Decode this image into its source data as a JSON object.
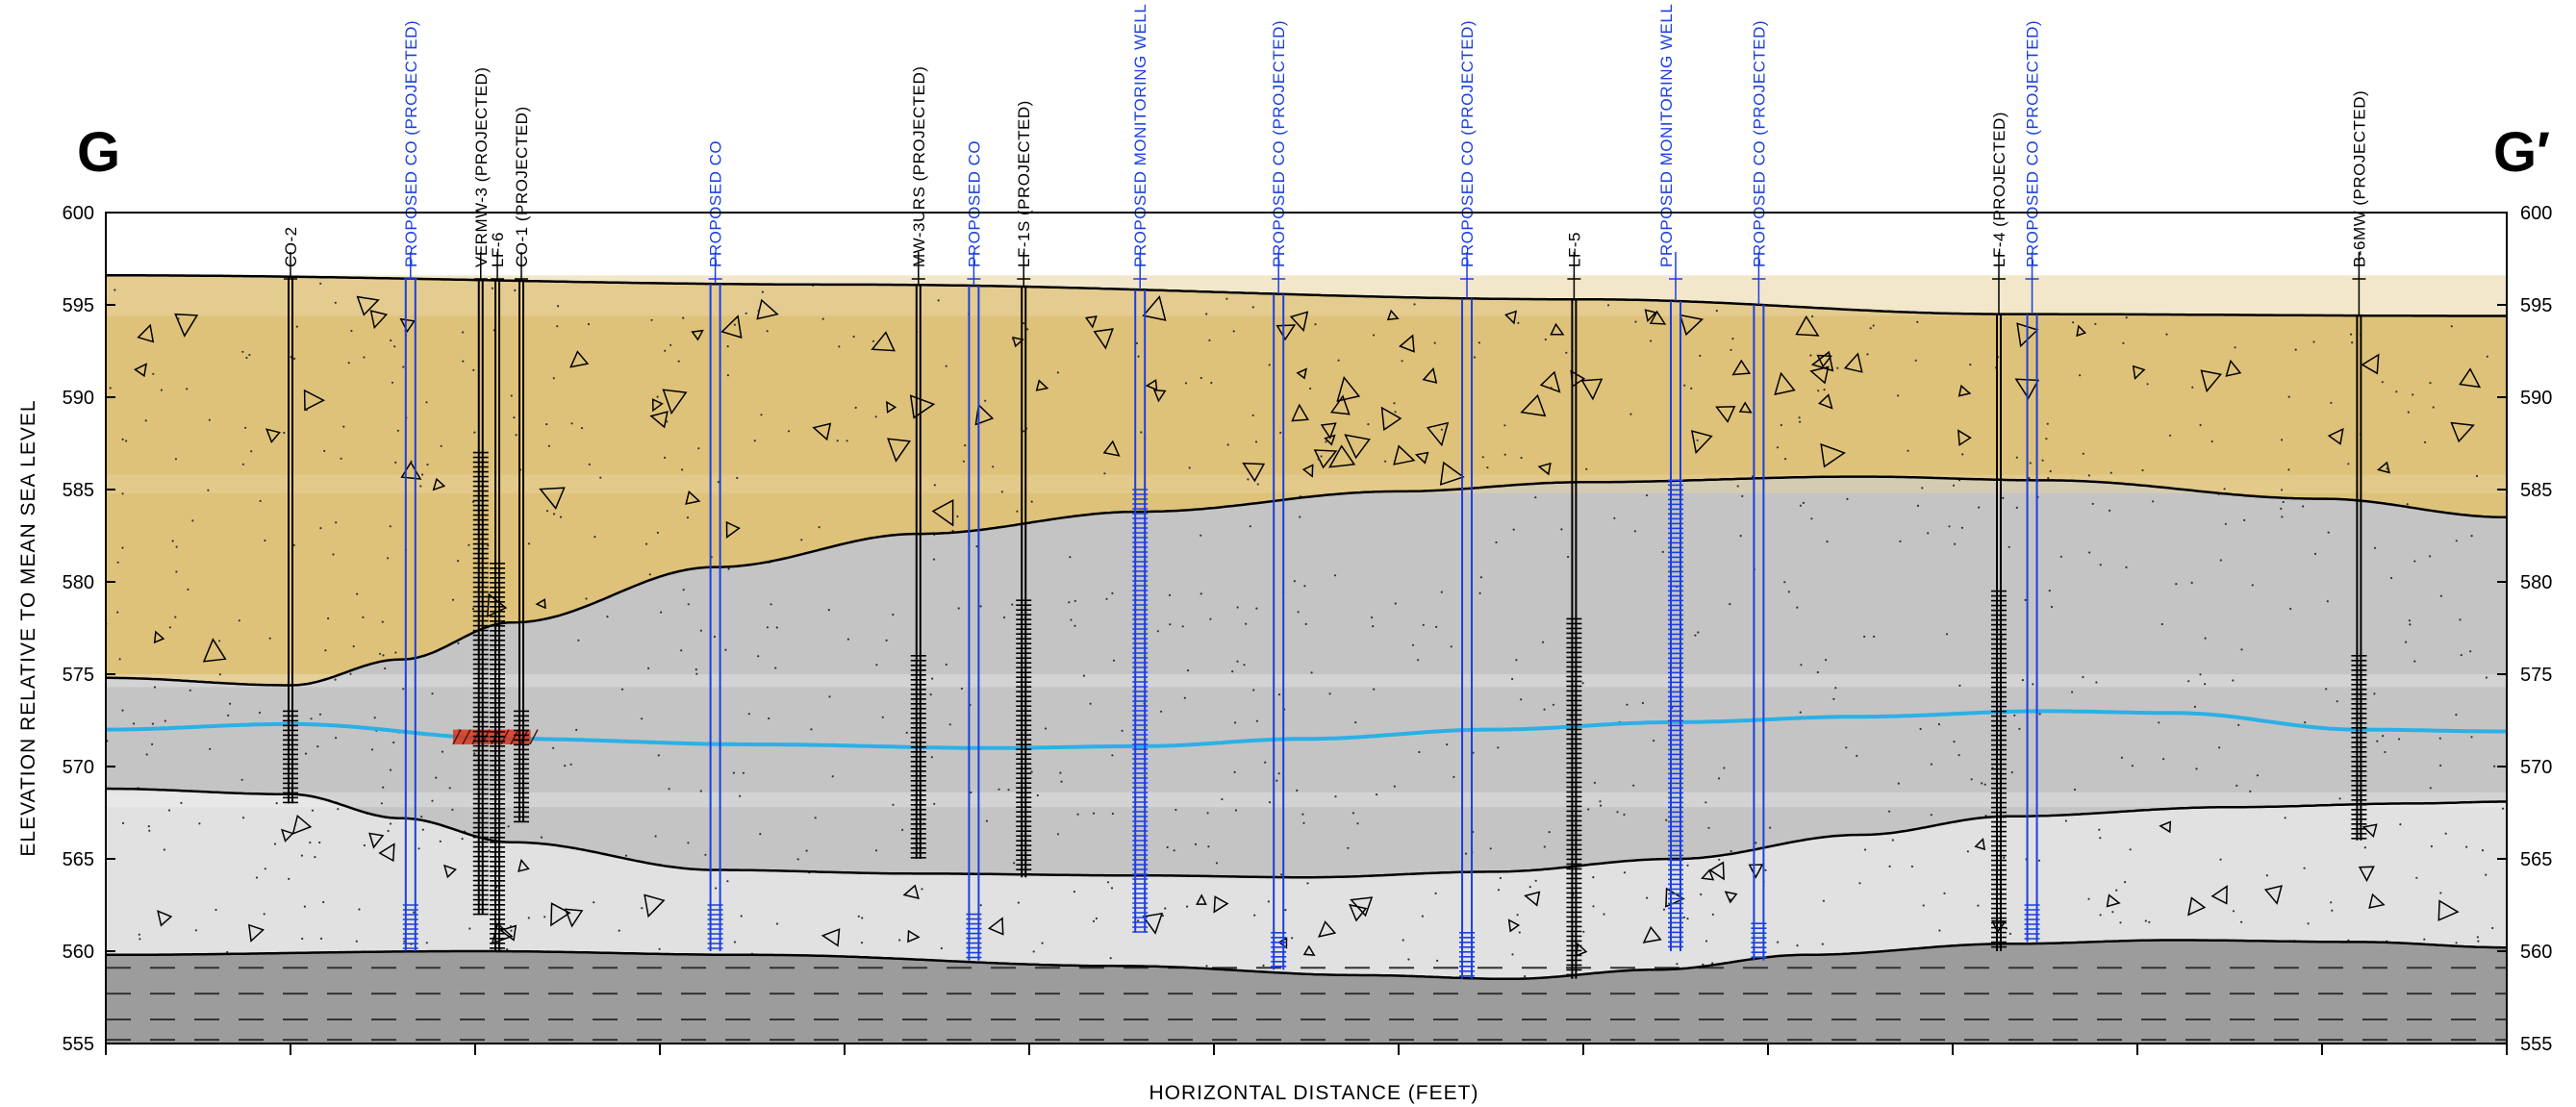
{
  "section": {
    "start_label": "G",
    "end_label": "G′",
    "y_axis_label": "ELEVATION RELATIVE TO MEAN SEA LEVEL",
    "x_axis_label": "HORIZONTAL DISTANCE (FEET)",
    "y_ticks": [
      "600",
      "595",
      "590",
      "585",
      "580",
      "575",
      "570",
      "565",
      "560",
      "555"
    ],
    "y_range": [
      555,
      600
    ],
    "x_range": [
      0,
      13
    ]
  },
  "colors": {
    "fill_layer": "#dfc27a",
    "fill_layer_light": "#e8d4a0",
    "clay_layer": "#c4c4c4",
    "sand_layer": "#e1e1e1",
    "bedrock_layer": "#9c9c9c",
    "water_table": "#2bb0e6",
    "existing_well": "#000000",
    "proposed_well": "#1a3fe0",
    "contamination": "#d8361c"
  },
  "wells": [
    {
      "id": "co2",
      "label": "CO-2",
      "proposed": false,
      "x": 1.0,
      "bottom": 568,
      "screen": [
        568,
        573
      ]
    },
    {
      "id": "pco1",
      "label": "PROPOSED CO (PROJECTED)",
      "proposed": true,
      "x": 1.65,
      "bottom": 560,
      "screen": [
        560,
        562.5
      ]
    },
    {
      "id": "vermw3",
      "label": "VERMW-3 (PROJECTED)",
      "proposed": false,
      "x": 2.03,
      "bottom": 562,
      "screen": [
        562,
        587
      ]
    },
    {
      "id": "lf6",
      "label": "LF-6",
      "proposed": false,
      "x": 2.12,
      "bottom": 560,
      "screen": [
        560,
        581
      ]
    },
    {
      "id": "co1",
      "label": "CO-1 (PROJECTED)",
      "proposed": false,
      "x": 2.25,
      "bottom": 567,
      "screen": [
        567,
        573
      ]
    },
    {
      "id": "pco2",
      "label": "PROPOSED CO",
      "proposed": true,
      "x": 3.3,
      "bottom": 560,
      "screen": [
        560,
        562.5
      ]
    },
    {
      "id": "mw3urs",
      "label": "MW-3URS (PROJECTED)",
      "proposed": false,
      "x": 4.4,
      "bottom": 565,
      "screen": [
        565,
        576
      ]
    },
    {
      "id": "pco3",
      "label": "PROPOSED CO",
      "proposed": true,
      "x": 4.7,
      "bottom": 559.5,
      "screen": [
        559.5,
        562
      ]
    },
    {
      "id": "lf1s",
      "label": "LF-1S (PROJECTED)",
      "proposed": false,
      "x": 4.97,
      "bottom": 564,
      "screen": [
        564,
        579
      ]
    },
    {
      "id": "pmw1",
      "label": "PROPOSED MONITORING WELL",
      "proposed": true,
      "x": 5.6,
      "bottom": 561,
      "screen": [
        561,
        585
      ]
    },
    {
      "id": "pco4",
      "label": "PROPOSED CO (PROJECTED)",
      "proposed": true,
      "x": 6.35,
      "bottom": 559,
      "screen": [
        559,
        561
      ]
    },
    {
      "id": "pco5",
      "label": "PROPOSED CO (PROJECTED)",
      "proposed": true,
      "x": 7.37,
      "bottom": 558.5,
      "screen": [
        558.5,
        561
      ]
    },
    {
      "id": "lf5",
      "label": "LF-5",
      "proposed": false,
      "x": 7.95,
      "bottom": 558.5,
      "screen": [
        558.5,
        578
      ]
    },
    {
      "id": "pmw2",
      "label": "PROPOSED MONITORING WELL (PROJECTED)",
      "proposed": true,
      "x": 8.5,
      "bottom": 560,
      "screen": [
        560,
        585.5
      ]
    },
    {
      "id": "pco6",
      "label": "PROPOSED CO (PROJECTED)",
      "proposed": true,
      "x": 8.95,
      "bottom": 559.5,
      "screen": [
        559.5,
        561.5
      ]
    },
    {
      "id": "lf4",
      "label": "LF-4 (PROJECTED)",
      "proposed": false,
      "x": 10.25,
      "bottom": 560,
      "screen": [
        560,
        579.5
      ]
    },
    {
      "id": "pco7",
      "label": "PROPOSED CO (PROJECTED)",
      "proposed": true,
      "x": 10.43,
      "bottom": 560.5,
      "screen": [
        560.5,
        562.5
      ]
    },
    {
      "id": "b6mw",
      "label": "B-6MW (PROJECTED)",
      "proposed": false,
      "x": 12.2,
      "bottom": 566,
      "screen": [
        566,
        576
      ]
    }
  ],
  "surfaces": {
    "ground": [
      [
        0,
        596.6
      ],
      [
        4,
        596.1
      ],
      [
        8,
        595.3
      ],
      [
        10.3,
        594.5
      ],
      [
        13,
        594.4
      ]
    ],
    "fill_base": [
      [
        0,
        574.8
      ],
      [
        1.0,
        574.4
      ],
      [
        1.6,
        575.8
      ],
      [
        2.2,
        577.8
      ],
      [
        3.3,
        580.8
      ],
      [
        4.4,
        582.6
      ],
      [
        5.6,
        583.8
      ],
      [
        7.0,
        584.9
      ],
      [
        8.0,
        585.4
      ],
      [
        9.5,
        585.7
      ],
      [
        10.5,
        585.5
      ],
      [
        12.0,
        584.5
      ],
      [
        13,
        583.5
      ]
    ],
    "sand_top": [
      [
        0,
        568.8
      ],
      [
        1.0,
        568.5
      ],
      [
        1.6,
        567.2
      ],
      [
        2.2,
        565.9
      ],
      [
        3.3,
        564.4
      ],
      [
        4.4,
        564.2
      ],
      [
        5.6,
        564.1
      ],
      [
        6.5,
        564.0
      ],
      [
        7.5,
        564.3
      ],
      [
        8.5,
        565.0
      ],
      [
        9.5,
        566.3
      ],
      [
        10.3,
        567.3
      ],
      [
        11.5,
        567.8
      ],
      [
        12.5,
        568.0
      ],
      [
        13,
        568.1
      ]
    ],
    "bedrock_top": [
      [
        0,
        559.8
      ],
      [
        2.0,
        560.0
      ],
      [
        3.5,
        559.8
      ],
      [
        5.5,
        559.2
      ],
      [
        6.8,
        558.7
      ],
      [
        7.6,
        558.5
      ],
      [
        8.4,
        559.0
      ],
      [
        9.2,
        559.8
      ],
      [
        10.3,
        560.4
      ],
      [
        11.2,
        560.6
      ],
      [
        12.2,
        560.5
      ],
      [
        13,
        560.2
      ]
    ],
    "water_table": [
      [
        0,
        572.0
      ],
      [
        1.0,
        572.3
      ],
      [
        2.2,
        571.5
      ],
      [
        3.5,
        571.2
      ],
      [
        4.8,
        571.0
      ],
      [
        5.6,
        571.1
      ],
      [
        6.5,
        571.5
      ],
      [
        7.5,
        572.0
      ],
      [
        8.5,
        572.4
      ],
      [
        9.5,
        572.7
      ],
      [
        10.5,
        573.0
      ],
      [
        11.2,
        572.9
      ],
      [
        12.2,
        572.0
      ],
      [
        13,
        571.9
      ]
    ]
  },
  "contamination_zone": {
    "x": [
      1.88,
      2.3
    ],
    "y": [
      571.2,
      572.0
    ]
  }
}
